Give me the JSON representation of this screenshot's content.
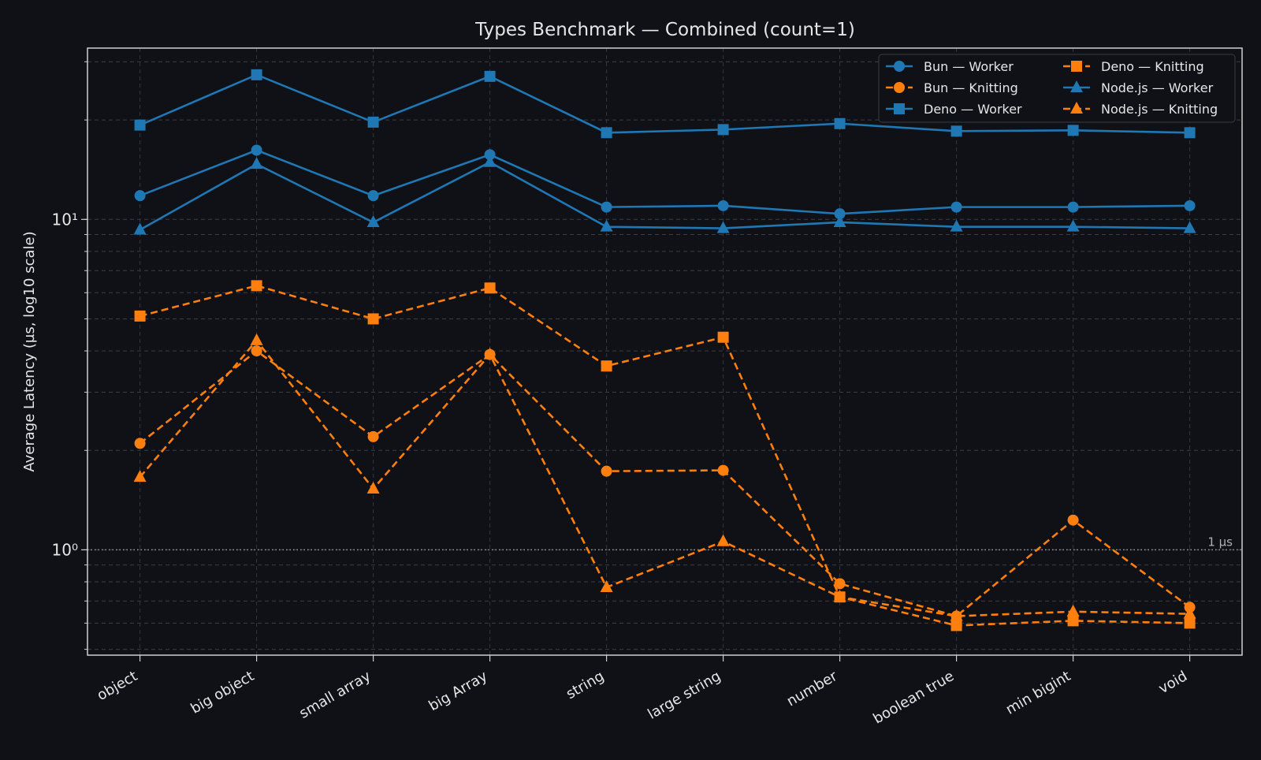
{
  "chart_data": {
    "type": "line",
    "title": "Types Benchmark — Combined (count=1)",
    "xlabel": "",
    "ylabel": "Average Latency (µs, log10 scale)",
    "yscale": "log10",
    "ylim": [
      0.48,
      33
    ],
    "ytick_labels": [
      {
        "value": 1,
        "label": "10⁰"
      },
      {
        "value": 10,
        "label": "10¹"
      }
    ],
    "grid": true,
    "legend_position": "top-right",
    "reference_line": {
      "value": 1,
      "label": "1 µs"
    },
    "categories": [
      "object",
      "big object",
      "small array",
      "big Array",
      "string",
      "large string",
      "number",
      "boolean true",
      "min bigint",
      "void"
    ],
    "series": [
      {
        "name": "Bun — Worker",
        "color": "#1f77b4",
        "marker": "circle",
        "dash": false,
        "values": [
          11.8,
          16.2,
          11.8,
          15.7,
          10.9,
          11.0,
          10.4,
          10.9,
          10.9,
          11.0
        ]
      },
      {
        "name": "Bun — Knitting",
        "color": "#ff7f0e",
        "marker": "circle",
        "dash": true,
        "values": [
          2.1,
          4.0,
          2.2,
          3.9,
          1.73,
          1.74,
          0.79,
          0.63,
          1.23,
          0.67
        ]
      },
      {
        "name": "Deno — Worker",
        "color": "#1f77b4",
        "marker": "square",
        "dash": false,
        "values": [
          19.3,
          27.4,
          19.7,
          27.1,
          18.3,
          18.7,
          19.5,
          18.5,
          18.6,
          18.3
        ]
      },
      {
        "name": "Deno — Knitting",
        "color": "#ff7f0e",
        "marker": "square",
        "dash": true,
        "values": [
          5.1,
          6.3,
          5.0,
          6.2,
          3.6,
          4.4,
          0.72,
          0.59,
          0.61,
          0.6
        ]
      },
      {
        "name": "Node.js — Worker",
        "color": "#1f77b4",
        "marker": "triangle",
        "dash": false,
        "values": [
          9.3,
          14.7,
          9.8,
          14.9,
          9.5,
          9.4,
          9.8,
          9.5,
          9.5,
          9.4
        ]
      },
      {
        "name": "Node.js — Knitting",
        "color": "#ff7f0e",
        "marker": "triangle",
        "dash": true,
        "values": [
          1.66,
          4.3,
          1.53,
          3.9,
          0.77,
          1.06,
          0.72,
          0.63,
          0.65,
          0.64
        ]
      }
    ]
  }
}
